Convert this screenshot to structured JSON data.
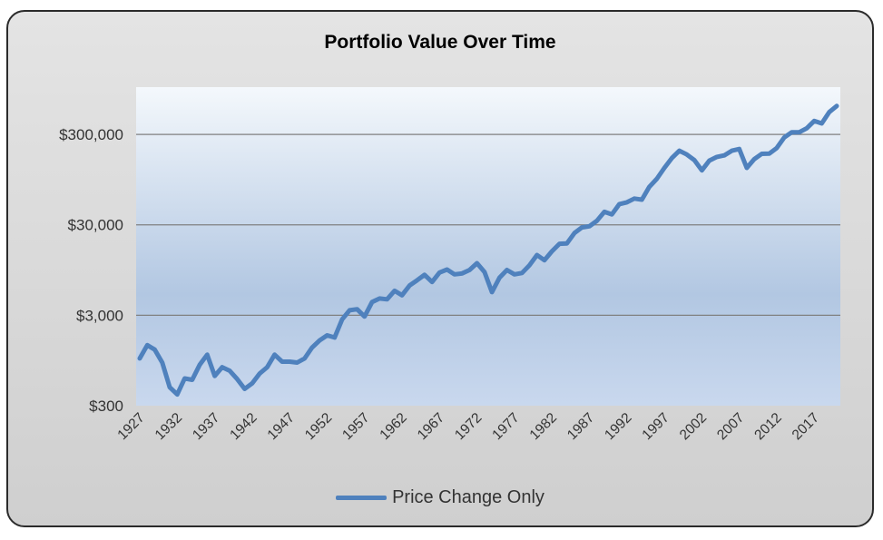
{
  "chart_data": {
    "type": "line",
    "title": "Portfolio Value Over Time",
    "xlabel": "",
    "ylabel": "",
    "yscale": "log",
    "ylim": [
      300,
      1000000
    ],
    "yticks": [
      300,
      3000,
      30000,
      300000
    ],
    "ytick_labels": [
      "$300",
      "$3,000",
      "$30,000",
      "$300,000"
    ],
    "xtick_labels": [
      "1927",
      "1932",
      "1937",
      "1942",
      "1947",
      "1952",
      "1957",
      "1962",
      "1967",
      "1972",
      "1977",
      "1982",
      "1987",
      "1992",
      "1997",
      "2002",
      "2007",
      "2012",
      "2017"
    ],
    "grid": true,
    "legend_position": "bottom",
    "colors": {
      "line": "#4f81bd",
      "grid": "#808080",
      "frame_border": "#2b2b2b"
    },
    "series": [
      {
        "name": "Price Change Only",
        "x": [
          1927,
          1928,
          1929,
          1930,
          1931,
          1932,
          1933,
          1934,
          1935,
          1936,
          1937,
          1938,
          1939,
          1940,
          1941,
          1942,
          1943,
          1944,
          1945,
          1946,
          1947,
          1948,
          1949,
          1950,
          1951,
          1952,
          1953,
          1954,
          1955,
          1956,
          1957,
          1958,
          1959,
          1960,
          1961,
          1962,
          1963,
          1964,
          1965,
          1966,
          1967,
          1968,
          1969,
          1970,
          1971,
          1972,
          1973,
          1974,
          1975,
          1976,
          1977,
          1978,
          1979,
          1980,
          1981,
          1982,
          1983,
          1984,
          1985,
          1986,
          1987,
          1988,
          1989,
          1990,
          1991,
          1992,
          1993,
          1994,
          1995,
          1996,
          1997,
          1998,
          1999,
          2000,
          2001,
          2002,
          2003,
          2004,
          2005,
          2006,
          2007,
          2008,
          2009,
          2010,
          2011,
          2012,
          2013,
          2014,
          2015,
          2016,
          2017,
          2018,
          2019,
          2020
        ],
        "values": [
          1000,
          1400,
          1250,
          900,
          480,
          400,
          600,
          580,
          850,
          1100,
          640,
          800,
          730,
          590,
          460,
          530,
          680,
          800,
          1100,
          920,
          920,
          900,
          1000,
          1320,
          1580,
          1800,
          1700,
          2700,
          3400,
          3500,
          2900,
          4200,
          4600,
          4500,
          5600,
          5000,
          6400,
          7300,
          8400,
          7000,
          8900,
          9600,
          8500,
          8700,
          9500,
          11300,
          9000,
          5400,
          7800,
          9500,
          8500,
          8800,
          10700,
          13900,
          12200,
          15300,
          18500,
          18700,
          24300,
          28100,
          28900,
          33200,
          41800,
          39200,
          50800,
          53300,
          58500,
          57000,
          78800,
          96800,
          128000,
          164000,
          198000,
          180000,
          156000,
          120000,
          154000,
          169000,
          176000,
          198000,
          207000,
          128000,
          160000,
          183000,
          184000,
          212000,
          278000,
          317000,
          317000,
          351000,
          422000,
          397000,
          528000,
          619000
        ]
      }
    ]
  },
  "legend": {
    "label": "Price Change Only"
  }
}
